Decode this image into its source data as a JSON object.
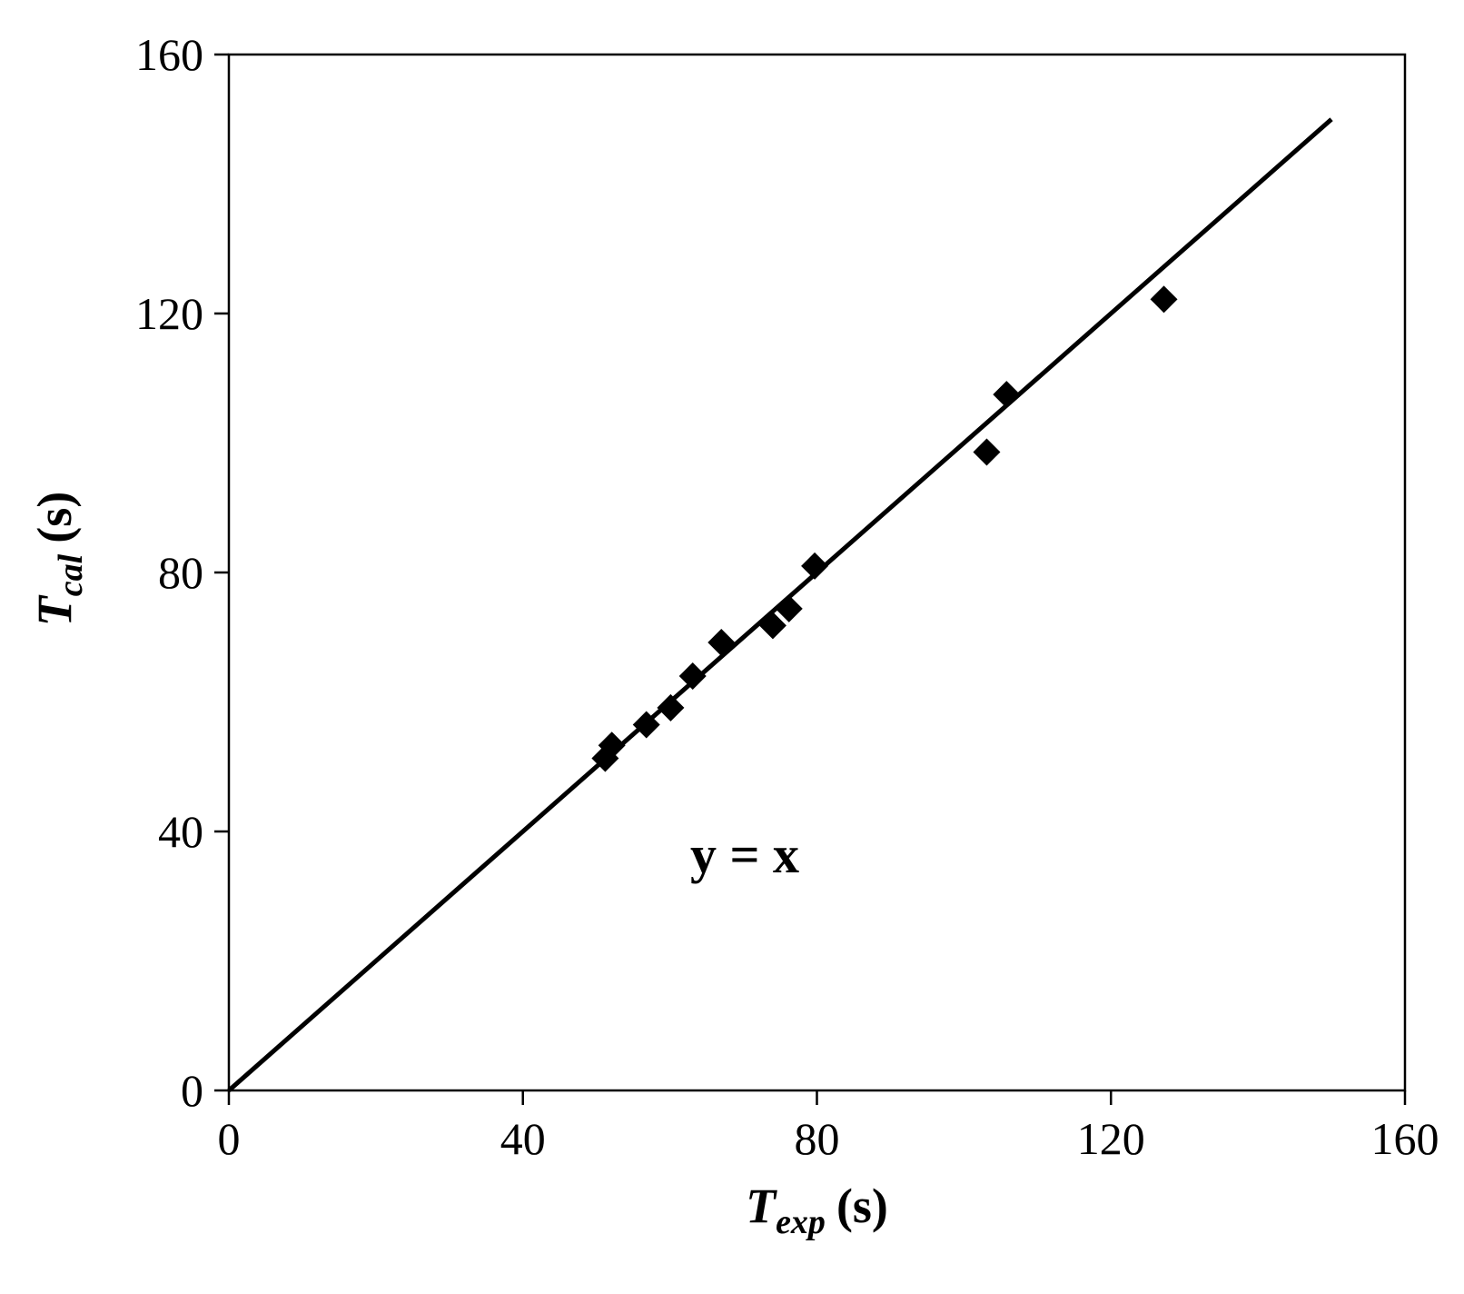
{
  "chart_data": {
    "type": "scatter",
    "x": [
      51.2,
      52.1,
      56.8,
      60.1,
      63.1,
      67.0,
      74.0,
      76.2,
      79.7,
      103.1,
      105.8,
      127.2
    ],
    "y": [
      51.3,
      53.3,
      56.5,
      59.1,
      64.0,
      69.2,
      71.8,
      74.4,
      81.0,
      98.6,
      107.5,
      122.2
    ],
    "color": "#000000",
    "line": {
      "x": [
        0,
        150
      ],
      "y": [
        0,
        150
      ],
      "color": "#000000"
    },
    "annotation": "y = x",
    "x_label": {
      "main": "T",
      "sub": "exp",
      "unit": "(s)"
    },
    "y_label": {
      "main": "T",
      "sub": "cal",
      "unit": "(s)"
    },
    "xlim": [
      0,
      160
    ],
    "ylim": [
      0,
      160
    ],
    "xticks": [
      0,
      40,
      80,
      120,
      160
    ],
    "yticks": [
      0,
      40,
      80,
      120,
      160
    ]
  }
}
